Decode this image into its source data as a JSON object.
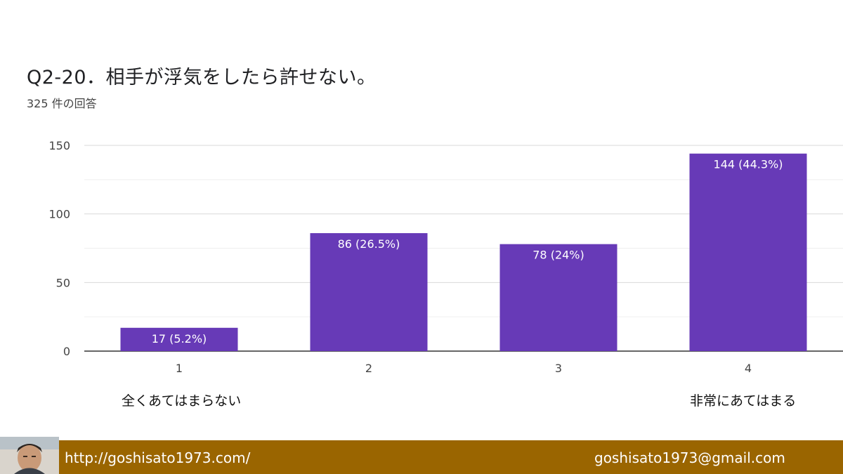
{
  "header": {
    "title": "Q2-20．相手が浮気をしたら許せない。",
    "responses": "325 件の回答"
  },
  "chart_data": {
    "type": "bar",
    "categories": [
      "1",
      "2",
      "3",
      "4"
    ],
    "values": [
      17,
      86,
      78,
      144
    ],
    "data_labels": [
      "17 (5.2%)",
      "86 (26.5%)",
      "78 (24%)",
      "144 (44.3%)"
    ],
    "yticks": [
      0,
      50,
      100,
      150
    ],
    "ylim": [
      0,
      150
    ],
    "grid": true,
    "bar_color": "#673ab7"
  },
  "scale_labels": {
    "low": "全くあてはまらない",
    "high": "非常にあてはまる"
  },
  "footer": {
    "url": "http://goshisato1973.com/",
    "email": "goshisato1973@gmail.com",
    "background": "#9a6500"
  }
}
